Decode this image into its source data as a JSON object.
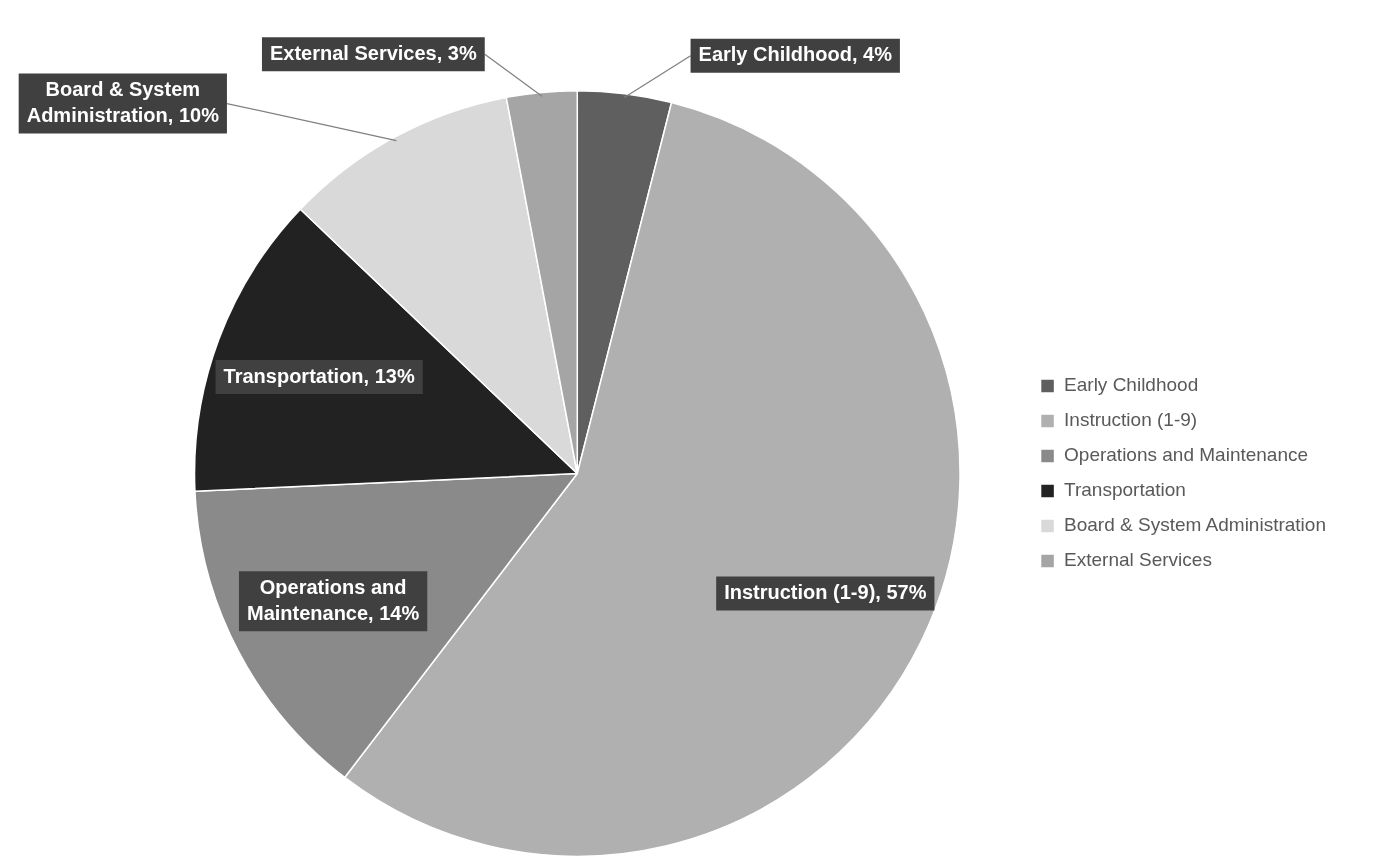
{
  "chart_data": {
    "type": "pie",
    "categories": [
      "Early Childhood",
      "Instruction (1-9)",
      "Operations and Maintenance",
      "Transportation",
      "Board & System Administration",
      "External Services"
    ],
    "values": [
      4,
      57,
      14,
      13,
      10,
      3
    ],
    "colors": [
      "#5f5f5f",
      "#b0b0b0",
      "#8a8a8a",
      "#222222",
      "#d9d9d9",
      "#a5a5a5"
    ],
    "value_labels": [
      "Early Childhood, 4%",
      "Instruction (1-9), 57%",
      "Operations and Maintenance, 14%",
      "Transportation, 13%",
      "Board & System Administration, 10%",
      "External Services, 3%"
    ],
    "legend": "right"
  }
}
